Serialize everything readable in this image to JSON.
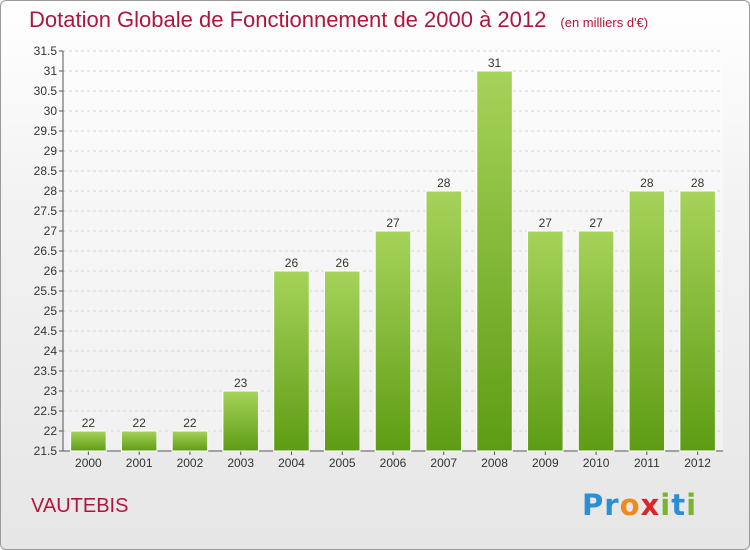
{
  "title": "Dotation Globale de Fonctionnement de 2000 à 2012",
  "unit": "(en milliers d'€)",
  "commune": "VAUTEBIS",
  "logo": {
    "text": "Proxiti",
    "letters": [
      {
        "ch": "P",
        "color": "#2a8fd6"
      },
      {
        "ch": "r",
        "color": "#2a8fd6"
      },
      {
        "ch": "o",
        "color": "#f08a1d"
      },
      {
        "ch": "x",
        "color": "#d9262b"
      },
      {
        "ch": "i",
        "color": "#7bb32e"
      },
      {
        "ch": "t",
        "color": "#2a8fd6"
      },
      {
        "ch": "i",
        "color": "#7bb32e"
      }
    ]
  },
  "colors": {
    "bar_light": "#a6d35a",
    "bar_dark": "#5e9c14",
    "grid": "#d5d5d5",
    "title": "#b2153b"
  },
  "chart_data": {
    "type": "bar",
    "categories": [
      "2000",
      "2001",
      "2002",
      "2003",
      "2004",
      "2005",
      "2006",
      "2007",
      "2008",
      "2009",
      "2010",
      "2011",
      "2012"
    ],
    "values": [
      22,
      22,
      22,
      23,
      26,
      26,
      27,
      28,
      31,
      27,
      27,
      28,
      28
    ],
    "ylim": [
      21.5,
      31.5
    ],
    "ytick_step": 0.5,
    "ytick_labels": [
      "21.5",
      "22",
      "22.5",
      "23",
      "23.5",
      "24",
      "24.5",
      "25",
      "25.5",
      "26",
      "26.5",
      "27",
      "27.5",
      "28",
      "28.5",
      "29",
      "29.5",
      "30",
      "30.5",
      "31",
      "31.5"
    ],
    "grid": true,
    "legend": "none"
  }
}
